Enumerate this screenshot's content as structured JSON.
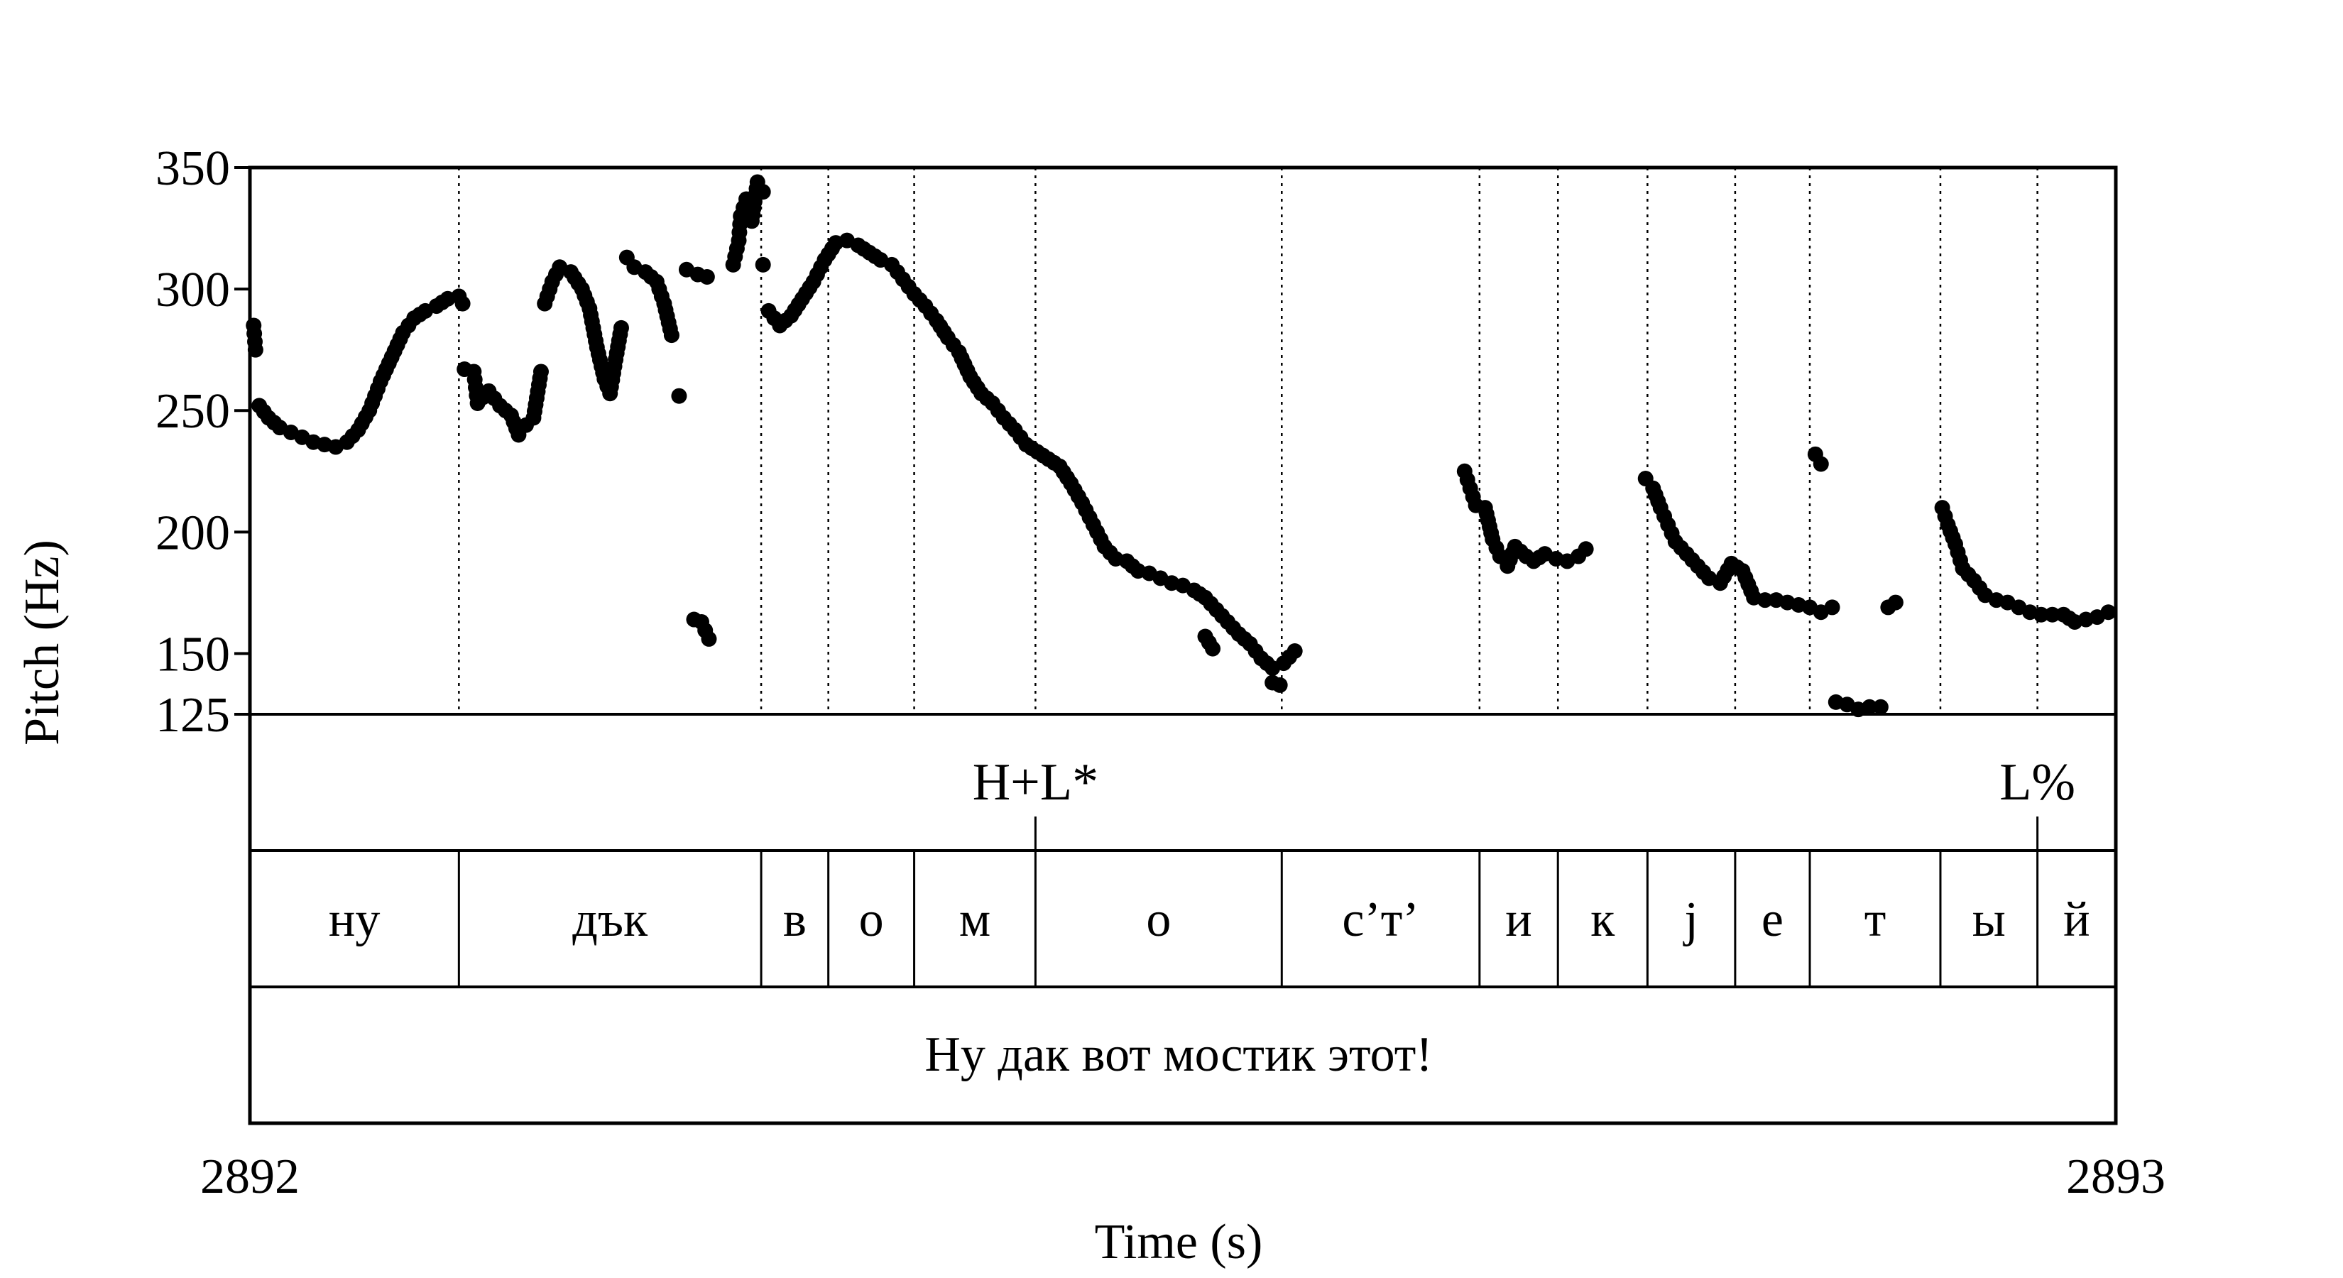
{
  "chart_data": {
    "type": "scatter",
    "xlabel": "Time (s)",
    "ylabel": "Pitch (Hz)",
    "xlim": [
      2892,
      2893
    ],
    "ylim": [
      125,
      350
    ],
    "x_ticks": [
      "2892",
      "2893"
    ],
    "y_ticks": [
      "350",
      "300",
      "250",
      "200",
      "150",
      "125"
    ],
    "grid": false,
    "tiers": {
      "tones": [
        {
          "label": "H+L*",
          "time": 2892.421
        },
        {
          "label": "L%",
          "time": 2892.958
        }
      ],
      "segments": [
        {
          "label": "ну",
          "start": 2892.0,
          "end": 2892.112
        },
        {
          "label": "дък",
          "start": 2892.112,
          "end": 2892.274
        },
        {
          "label": "в",
          "start": 2892.274,
          "end": 2892.31
        },
        {
          "label": "о",
          "start": 2892.31,
          "end": 2892.356
        },
        {
          "label": "м",
          "start": 2892.356,
          "end": 2892.421
        },
        {
          "label": "о",
          "start": 2892.421,
          "end": 2892.553
        },
        {
          "label": "с’т’",
          "start": 2892.553,
          "end": 2892.659
        },
        {
          "label": "и",
          "start": 2892.659,
          "end": 2892.701
        },
        {
          "label": "к",
          "start": 2892.701,
          "end": 2892.749
        },
        {
          "label": "j",
          "start": 2892.749,
          "end": 2892.796
        },
        {
          "label": "е",
          "start": 2892.796,
          "end": 2892.836
        },
        {
          "label": "т",
          "start": 2892.836,
          "end": 2892.906
        },
        {
          "label": "ы",
          "start": 2892.906,
          "end": 2892.958
        },
        {
          "label": "й",
          "start": 2892.958,
          "end": 2893.0
        }
      ],
      "sentence": "Ну дак вот мостик этот!"
    },
    "segments_pitch": [
      [
        [
          2892.002,
          285
        ],
        [
          2892.003,
          275
        ],
        [
          2892.005,
          252
        ],
        [
          2892.01,
          247
        ],
        [
          2892.016,
          243
        ],
        [
          2892.022,
          241
        ],
        [
          2892.028,
          239
        ],
        [
          2892.034,
          237
        ],
        [
          2892.04,
          236
        ],
        [
          2892.046,
          235
        ],
        [
          2892.052,
          237
        ],
        [
          2892.058,
          242
        ],
        [
          2892.064,
          250
        ],
        [
          2892.07,
          262
        ],
        [
          2892.076,
          272
        ],
        [
          2892.082,
          282
        ],
        [
          2892.088,
          288
        ],
        [
          2892.094,
          291
        ],
        [
          2892.1,
          293
        ],
        [
          2892.106,
          296
        ],
        [
          2892.112,
          297
        ],
        [
          2892.114,
          294
        ]
      ],
      [
        [
          2892.115,
          267
        ],
        [
          2892.12,
          266
        ],
        [
          2892.122,
          253
        ],
        [
          2892.128,
          258
        ],
        [
          2892.134,
          252
        ],
        [
          2892.14,
          248
        ],
        [
          2892.144,
          240
        ],
        [
          2892.148,
          244
        ],
        [
          2892.152,
          247
        ],
        [
          2892.156,
          266
        ],
        [
          2892.158,
          294
        ],
        [
          2892.162,
          303
        ],
        [
          2892.166,
          309
        ],
        [
          2892.172,
          307
        ],
        [
          2892.178,
          300
        ],
        [
          2892.182,
          292
        ],
        [
          2892.186,
          276
        ],
        [
          2892.19,
          263
        ],
        [
          2892.193,
          257
        ],
        [
          2892.196,
          271
        ],
        [
          2892.199,
          284
        ],
        [
          2892.202,
          313
        ],
        [
          2892.206,
          309
        ],
        [
          2892.212,
          307
        ],
        [
          2892.218,
          303
        ],
        [
          2892.222,
          294
        ],
        [
          2892.226,
          281
        ],
        [
          2892.23,
          256
        ]
      ],
      [
        [
          2892.234,
          308
        ],
        [
          2892.24,
          306
        ],
        [
          2892.245,
          305
        ]
      ],
      [
        [
          2892.238,
          164
        ],
        [
          2892.242,
          163
        ],
        [
          2892.246,
          156
        ]
      ],
      [
        [
          2892.259,
          310
        ],
        [
          2892.262,
          320
        ],
        [
          2892.263,
          330
        ],
        [
          2892.266,
          337
        ],
        [
          2892.269,
          328
        ],
        [
          2892.272,
          344
        ],
        [
          2892.275,
          340
        ],
        [
          2892.275,
          310
        ]
      ],
      [
        [
          2892.278,
          291
        ],
        [
          2892.284,
          285
        ],
        [
          2892.29,
          289
        ],
        [
          2892.296,
          296
        ],
        [
          2892.302,
          303
        ],
        [
          2892.308,
          312
        ],
        [
          2892.314,
          319
        ],
        [
          2892.32,
          320
        ],
        [
          2892.326,
          318
        ],
        [
          2892.332,
          315
        ],
        [
          2892.338,
          312
        ],
        [
          2892.344,
          310
        ],
        [
          2892.35,
          304
        ],
        [
          2892.356,
          298
        ],
        [
          2892.362,
          293
        ],
        [
          2892.368,
          287
        ],
        [
          2892.374,
          280
        ],
        [
          2892.38,
          274
        ],
        [
          2892.386,
          264
        ],
        [
          2892.392,
          257
        ],
        [
          2892.398,
          253
        ],
        [
          2892.404,
          247
        ],
        [
          2892.41,
          242
        ],
        [
          2892.416,
          236
        ],
        [
          2892.422,
          233
        ],
        [
          2892.428,
          230
        ],
        [
          2892.434,
          227
        ],
        [
          2892.44,
          220
        ],
        [
          2892.446,
          212
        ],
        [
          2892.452,
          203
        ],
        [
          2892.458,
          194
        ],
        [
          2892.464,
          189
        ],
        [
          2892.47,
          188
        ],
        [
          2892.476,
          184
        ],
        [
          2892.482,
          183
        ],
        [
          2892.488,
          181
        ],
        [
          2892.494,
          179
        ],
        [
          2892.5,
          178
        ],
        [
          2892.506,
          176
        ],
        [
          2892.512,
          173
        ],
        [
          2892.518,
          168
        ],
        [
          2892.524,
          163
        ],
        [
          2892.53,
          158
        ],
        [
          2892.536,
          154
        ],
        [
          2892.542,
          148
        ],
        [
          2892.548,
          144
        ],
        [
          2892.554,
          146
        ],
        [
          2892.56,
          151
        ]
      ],
      [
        [
          2892.512,
          157
        ],
        [
          2892.516,
          152
        ]
      ],
      [
        [
          2892.548,
          138
        ],
        [
          2892.552,
          137
        ]
      ],
      [
        [
          2892.651,
          225
        ],
        [
          2892.654,
          218
        ],
        [
          2892.657,
          211
        ],
        [
          2892.662,
          210
        ],
        [
          2892.666,
          197
        ],
        [
          2892.67,
          190
        ],
        [
          2892.674,
          186
        ],
        [
          2892.678,
          194
        ],
        [
          2892.684,
          190
        ],
        [
          2892.688,
          188
        ],
        [
          2892.694,
          191
        ],
        [
          2892.7,
          189
        ],
        [
          2892.706,
          188
        ],
        [
          2892.712,
          190
        ],
        [
          2892.716,
          193
        ]
      ],
      [
        [
          2892.748,
          222
        ],
        [
          2892.752,
          218
        ],
        [
          2892.756,
          210
        ],
        [
          2892.76,
          203
        ],
        [
          2892.764,
          196
        ],
        [
          2892.77,
          191
        ],
        [
          2892.776,
          186
        ],
        [
          2892.782,
          181
        ],
        [
          2892.788,
          179
        ],
        [
          2892.794,
          187
        ],
        [
          2892.8,
          184
        ],
        [
          2892.806,
          173
        ],
        [
          2892.812,
          172
        ],
        [
          2892.818,
          172
        ],
        [
          2892.824,
          171
        ],
        [
          2892.83,
          170
        ],
        [
          2892.836,
          169
        ],
        [
          2892.842,
          167
        ],
        [
          2892.848,
          169
        ]
      ],
      [
        [
          2892.839,
          232
        ],
        [
          2892.842,
          228
        ]
      ],
      [
        [
          2892.85,
          130
        ],
        [
          2892.856,
          129
        ],
        [
          2892.862,
          127
        ],
        [
          2892.868,
          128
        ],
        [
          2892.874,
          128
        ]
      ],
      [
        [
          2892.878,
          169
        ],
        [
          2892.882,
          171
        ]
      ],
      [
        [
          2892.907,
          210
        ],
        [
          2892.91,
          203
        ],
        [
          2892.914,
          195
        ],
        [
          2892.918,
          185
        ],
        [
          2892.924,
          180
        ],
        [
          2892.93,
          174
        ],
        [
          2892.936,
          172
        ],
        [
          2892.942,
          171
        ],
        [
          2892.948,
          169
        ],
        [
          2892.954,
          167
        ],
        [
          2892.96,
          166
        ],
        [
          2892.966,
          166
        ],
        [
          2892.972,
          166
        ],
        [
          2892.978,
          163
        ],
        [
          2892.984,
          164
        ],
        [
          2892.99,
          165
        ],
        [
          2892.996,
          167
        ]
      ]
    ]
  }
}
